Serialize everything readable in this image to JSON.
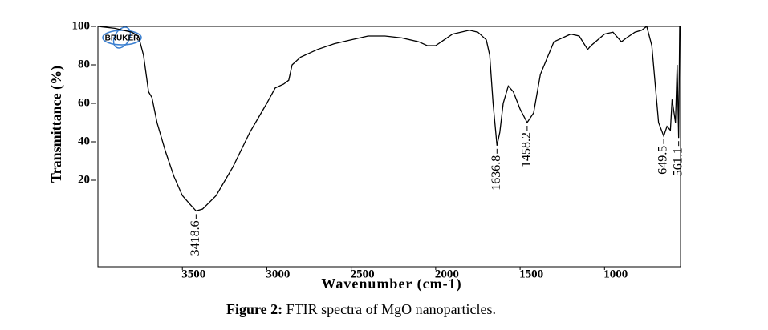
{
  "chart_data": {
    "type": "line",
    "logo": "BRUKER",
    "y_label": "Transmittance (%)",
    "x_label": "Wavenumber (cm-1)",
    "caption_label": "Figure 2:",
    "caption_text": "FTIR spectra of MgO nanoparticles.",
    "color": "#000000",
    "x": [
      4000,
      3900,
      3800,
      3760,
      3730,
      3700,
      3680,
      3650,
      3600,
      3550,
      3500,
      3450,
      3418.6,
      3380,
      3300,
      3200,
      3100,
      3000,
      2950,
      2900,
      2870,
      2850,
      2800,
      2700,
      2600,
      2500,
      2400,
      2300,
      2200,
      2100,
      2050,
      2000,
      1950,
      1900,
      1800,
      1750,
      1700,
      1680,
      1660,
      1636.8,
      1620,
      1600,
      1570,
      1540,
      1500,
      1458.2,
      1420,
      1380,
      1300,
      1200,
      1150,
      1100,
      1080,
      1000,
      950,
      900,
      870,
      820,
      780,
      750,
      720,
      700,
      680,
      649.5,
      630,
      610,
      600,
      580,
      570,
      561.1,
      555
    ],
    "values": [
      100,
      99,
      97,
      95,
      85,
      66,
      63,
      50,
      35,
      22,
      12,
      7,
      4,
      5,
      12,
      27,
      45,
      60,
      68,
      70,
      72,
      80,
      84,
      88,
      91,
      93,
      95,
      95,
      94,
      92,
      90,
      90,
      93,
      96,
      98,
      97,
      93,
      85,
      60,
      38,
      45,
      60,
      69,
      66,
      57,
      50,
      55,
      75,
      92,
      96,
      95,
      88,
      90,
      96,
      97,
      92,
      94,
      97,
      98,
      100,
      90,
      70,
      50,
      43,
      48,
      46,
      62,
      50,
      80,
      42,
      100
    ],
    "peaks": [
      3418.6,
      1636.8,
      1458.2,
      649.5,
      561.1
    ],
    "xlim": [
      4000,
      550
    ],
    "xticks": [
      3500,
      3000,
      2500,
      2000,
      1500,
      1000
    ],
    "ylim": [
      -25,
      100
    ],
    "yticks": [
      20,
      40,
      60,
      80,
      100
    ]
  }
}
